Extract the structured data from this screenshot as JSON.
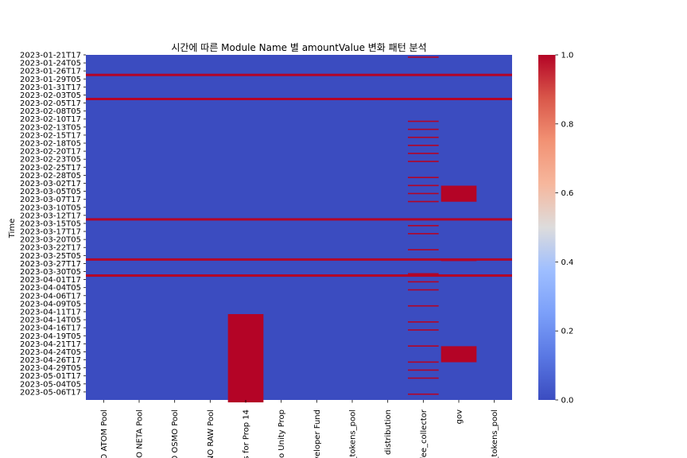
{
  "chart_data": {
    "type": "heatmap",
    "title": "시간에 따른 Module Name 별 amountValue 변화 패턴 분석",
    "xlabel": "",
    "ylabel": "Time",
    "columns": [
      "O ATOM Pool",
      "NO NETA Pool",
      "O OSMO Pool",
      "NO RAW Pool",
      "s for Prop 14",
      "no Unity Prop",
      "veloper Fund",
      "_tokens_pool",
      "distribution",
      "fee_collector",
      "gov",
      "_tokens_pool"
    ],
    "y_tick_labels": [
      "2023-01-21T17",
      "2023-01-24T05",
      "2023-01-26T17",
      "2023-01-29T05",
      "2023-01-31T17",
      "2023-02-03T05",
      "2023-02-05T17",
      "2023-02-08T05",
      "2023-02-10T17",
      "2023-02-13T05",
      "2023-02-15T17",
      "2023-02-18T05",
      "2023-02-20T17",
      "2023-02-23T05",
      "2023-02-25T17",
      "2023-02-28T05",
      "2023-03-02T17",
      "2023-03-05T05",
      "2023-03-07T17",
      "2023-03-10T05",
      "2023-03-12T17",
      "2023-03-15T05",
      "2023-03-17T17",
      "2023-03-20T05",
      "2023-03-22T17",
      "2023-03-25T05",
      "2023-03-27T17",
      "2023-03-30T05",
      "2023-04-01T17",
      "2023-04-04T05",
      "2023-04-06T17",
      "2023-04-09T05",
      "2023-04-11T17",
      "2023-04-14T05",
      "2023-04-16T17",
      "2023-04-19T05",
      "2023-04-21T17",
      "2023-04-24T05",
      "2023-04-26T17",
      "2023-04-29T05",
      "2023-05-01T17",
      "2023-05-04T05",
      "2023-05-06T17"
    ],
    "value_range": [
      0,
      1
    ],
    "colorbar_ticks": [
      "0.0",
      "0.2",
      "0.4",
      "0.6",
      "0.8",
      "1.0"
    ],
    "colormap": "coolwarm",
    "colors": {
      "low": "#3b4cc0",
      "high": "#b40426"
    },
    "note_cells": "All cells 0 except those listed as 1 (Time is the tick label at or before the event)",
    "active_row_all_columns": [
      "2023-01-26T17",
      "2023-02-03T05",
      "2023-03-12T17",
      "2023-03-25T05",
      "2023-03-30T05"
    ],
    "active_blocks": [
      {
        "column": "s for Prop 14",
        "from": "2023-04-11T17",
        "to": "2023-05-06T17"
      },
      {
        "column": "gov",
        "from": "2023-03-02T17",
        "to": "2023-03-05T05"
      },
      {
        "column": "gov",
        "from": "2023-04-21T17",
        "to": "2023-04-24T05"
      },
      {
        "column": "gov",
        "from": "2023-03-25T05",
        "to": "2023-03-25T05"
      }
    ],
    "fee_collector_events": [
      "2023-01-21T17",
      "2023-02-10T17",
      "2023-02-13T05",
      "2023-02-15T17",
      "2023-02-18T05",
      "2023-02-20T17",
      "2023-02-23T05",
      "2023-02-28T05",
      "2023-03-02T17",
      "2023-03-05T05",
      "2023-03-07T17",
      "2023-03-15T05",
      "2023-03-17T17",
      "2023-03-22T17",
      "2023-03-30T05",
      "2023-04-01T17",
      "2023-04-04T05",
      "2023-04-09T05",
      "2023-04-14T05",
      "2023-04-16T17",
      "2023-04-21T17",
      "2023-04-26T17",
      "2023-04-29T05",
      "2023-05-01T17",
      "2023-05-06T17"
    ]
  }
}
